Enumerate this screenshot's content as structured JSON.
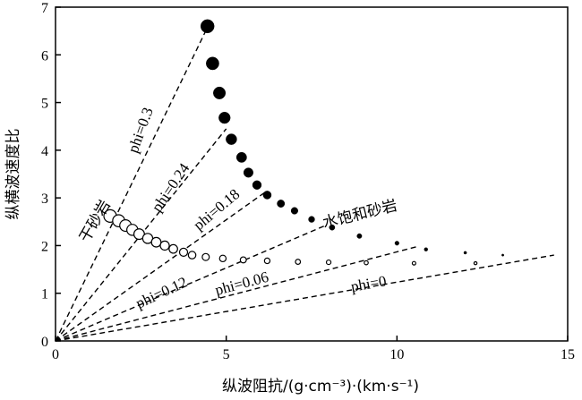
{
  "chart_data": {
    "type": "scatter",
    "title": "",
    "xlabel": "纵波阻抗/(g·cm⁻³)·(km·s⁻¹)",
    "ylabel": "纵横波速度比",
    "xlim": [
      0,
      15
    ],
    "ylim": [
      0,
      7
    ],
    "xticks": [
      "0",
      "5",
      "10",
      "15"
    ],
    "yticks": [
      "0",
      "1",
      "2",
      "3",
      "4",
      "5",
      "6",
      "7"
    ],
    "grid": false,
    "legend": "none",
    "series": [
      {
        "name": "干砂岩",
        "marker": "open-circle",
        "points": [
          [
            1.6,
            2.62
          ],
          [
            1.85,
            2.52
          ],
          [
            2.05,
            2.42
          ],
          [
            2.25,
            2.33
          ],
          [
            2.45,
            2.24
          ],
          [
            2.7,
            2.15
          ],
          [
            2.95,
            2.07
          ],
          [
            3.2,
            2.0
          ],
          [
            3.45,
            1.93
          ],
          [
            3.75,
            1.86
          ],
          [
            4.0,
            1.8
          ],
          [
            4.4,
            1.76
          ],
          [
            4.9,
            1.73
          ],
          [
            5.5,
            1.7
          ],
          [
            6.2,
            1.68
          ],
          [
            7.1,
            1.66
          ],
          [
            8.0,
            1.65
          ],
          [
            9.1,
            1.64
          ],
          [
            10.5,
            1.63
          ],
          [
            12.3,
            1.63
          ]
        ]
      },
      {
        "name": "水饱和砂岩",
        "marker": "filled-circle",
        "points": [
          [
            4.45,
            6.6
          ],
          [
            4.6,
            5.82
          ],
          [
            4.8,
            5.2
          ],
          [
            4.95,
            4.68
          ],
          [
            5.15,
            4.23
          ],
          [
            5.45,
            3.85
          ],
          [
            5.65,
            3.53
          ],
          [
            5.9,
            3.27
          ],
          [
            6.2,
            3.06
          ],
          [
            6.6,
            2.88
          ],
          [
            7.0,
            2.73
          ],
          [
            7.5,
            2.55
          ],
          [
            8.1,
            2.38
          ],
          [
            8.9,
            2.2
          ],
          [
            10.0,
            2.05
          ],
          [
            10.85,
            1.92
          ],
          [
            12.0,
            1.85
          ],
          [
            13.1,
            1.8
          ]
        ]
      }
    ],
    "lines": [
      {
        "label": "phi=0.3",
        "end": [
          4.5,
          6.65
        ]
      },
      {
        "label": "phi=0.24",
        "end": [
          5.0,
          4.45
        ]
      },
      {
        "label": "phi=0.18",
        "end": [
          6.2,
          3.15
        ]
      },
      {
        "label": "phi=0.12",
        "end": [
          7.9,
          2.42
        ]
      },
      {
        "label": "phi=0.06",
        "end": [
          10.6,
          1.98
        ]
      },
      {
        "label": "phi=0",
        "end": [
          14.6,
          1.8
        ]
      }
    ],
    "annotations": {
      "dry": "干砂岩",
      "wet": "水饱和砂岩"
    }
  }
}
